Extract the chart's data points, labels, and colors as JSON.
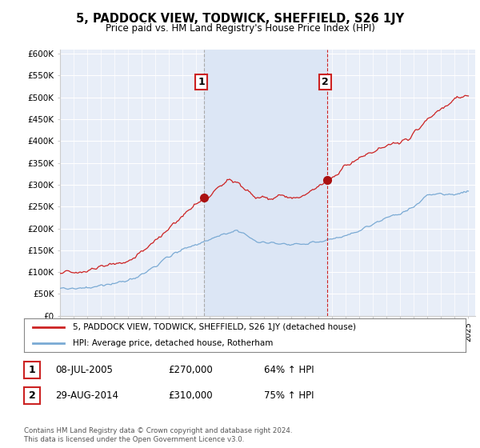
{
  "title": "5, PADDOCK VIEW, TODWICK, SHEFFIELD, S26 1JY",
  "subtitle": "Price paid vs. HM Land Registry's House Price Index (HPI)",
  "ylabel_ticks": [
    "£0",
    "£50K",
    "£100K",
    "£150K",
    "£200K",
    "£250K",
    "£300K",
    "£350K",
    "£400K",
    "£450K",
    "£500K",
    "£550K",
    "£600K"
  ],
  "ytick_values": [
    0,
    50000,
    100000,
    150000,
    200000,
    250000,
    300000,
    350000,
    400000,
    450000,
    500000,
    550000,
    600000
  ],
  "ylim": [
    0,
    610000
  ],
  "background_color": "#ffffff",
  "plot_bg_color": "#e8eef8",
  "plot_bg_color2": "#dce6f5",
  "grid_color": "#ffffff",
  "line_color_red": "#cc2222",
  "line_color_blue": "#7aaad4",
  "vline1_color": "#aaaaaa",
  "vline2_color": "#cc2222",
  "marker1_x": 2005.55,
  "marker1_y": 270000,
  "marker2_x": 2014.65,
  "marker2_y": 310000,
  "legend_entry1": "5, PADDOCK VIEW, TODWICK, SHEFFIELD, S26 1JY (detached house)",
  "legend_entry2": "HPI: Average price, detached house, Rotherham",
  "table_row1": [
    "1",
    "08-JUL-2005",
    "£270,000",
    "64% ↑ HPI"
  ],
  "table_row2": [
    "2",
    "29-AUG-2014",
    "£310,000",
    "75% ↑ HPI"
  ],
  "footer": "Contains HM Land Registry data © Crown copyright and database right 2024.\nThis data is licensed under the Open Government Licence v3.0.",
  "xmin": 1995,
  "xmax": 2025.5,
  "shade_x1": 2005.55,
  "shade_x2": 2014.65
}
